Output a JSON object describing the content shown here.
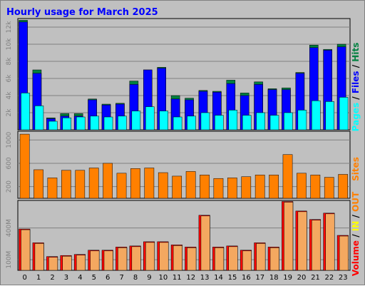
{
  "chart_data": {
    "type": "bar",
    "title": "Hourly usage for March 2025",
    "categories": [
      "0",
      "1",
      "2",
      "3",
      "4",
      "5",
      "6",
      "7",
      "8",
      "9",
      "10",
      "11",
      "12",
      "13",
      "14",
      "15",
      "16",
      "17",
      "18",
      "19",
      "20",
      "21",
      "22",
      "23"
    ],
    "panels": [
      {
        "id": "hits",
        "yticks": [
          "2k",
          "4k",
          "6k",
          "8k",
          "10k",
          "12k"
        ],
        "ylim": [
          0,
          13000
        ],
        "series": [
          {
            "name": "Hits",
            "color": "#008040",
            "values": [
              12800,
              7000,
              1400,
              1900,
              1900,
              3600,
              3000,
              3100,
              5700,
              7000,
              7300,
              4000,
              3700,
              4600,
              4500,
              5800,
              4300,
              5600,
              4800,
              4900,
              6700,
              9900,
              9400,
              10000
            ]
          },
          {
            "name": "Files",
            "color": "#0000ff",
            "values": [
              12600,
              6600,
              1300,
              1600,
              1600,
              3500,
              2900,
              3000,
              5300,
              7000,
              7200,
              3600,
              3500,
              4500,
              4400,
              5400,
              4000,
              5300,
              4700,
              4700,
              6600,
              9600,
              9300,
              9700
            ]
          },
          {
            "name": "Pages",
            "color": "#00ffff",
            "values": [
              4300,
              2800,
              1000,
              1400,
              1500,
              1600,
              1500,
              1600,
              2200,
              2700,
              2200,
              1500,
              1600,
              2000,
              1700,
              2300,
              1700,
              2000,
              1700,
              2000,
              2300,
              3400,
              3300,
              3800
            ]
          }
        ]
      },
      {
        "id": "sites",
        "yticks": [
          "200",
          "600",
          "1000"
        ],
        "ylim": [
          0,
          1150
        ],
        "series": [
          {
            "name": "Sites",
            "color": "#ff8000",
            "values": [
              1100,
              490,
              350,
              480,
              480,
              520,
              600,
              430,
              510,
              520,
              440,
              380,
              460,
              400,
              340,
              350,
              370,
              400,
              400,
              750,
              430,
              400,
              360,
              410
            ]
          }
        ]
      },
      {
        "id": "volume",
        "yticks": [
          "100M",
          "400M"
        ],
        "ylim": [
          0,
          660
        ],
        "series": [
          {
            "name": "Volume",
            "color": "#ff0000",
            "values": [
              390,
              260,
              130,
              140,
              150,
              190,
              190,
              220,
              230,
              270,
              270,
              240,
              220,
              520,
              220,
              230,
              190,
              260,
              220,
              650,
              560,
              480,
              540,
              330
            ]
          },
          {
            "name": "IN",
            "color": "#ffff00",
            "values": []
          },
          {
            "name": "OUT",
            "color": "#ff8000",
            "values": []
          }
        ]
      }
    ],
    "legend_right_top": [
      {
        "text": "Pages",
        "color": "#00ffff"
      },
      {
        "text": " / ",
        "color": "#000000"
      },
      {
        "text": "Files",
        "color": "#0000ff"
      },
      {
        "text": " / ",
        "color": "#000000"
      },
      {
        "text": "Hits",
        "color": "#008040"
      }
    ],
    "legend_right_mid": [
      {
        "text": "Sites",
        "color": "#ff8000"
      }
    ],
    "legend_right_bottom": [
      {
        "text": "Volume",
        "color": "#ff0000"
      },
      {
        "text": " / ",
        "color": "#000000"
      },
      {
        "text": "IN",
        "color": "#ffff00"
      },
      {
        "text": " / ",
        "color": "#000000"
      },
      {
        "text": "OUT",
        "color": "#ff8000"
      }
    ],
    "grid": true,
    "legend": "right"
  }
}
